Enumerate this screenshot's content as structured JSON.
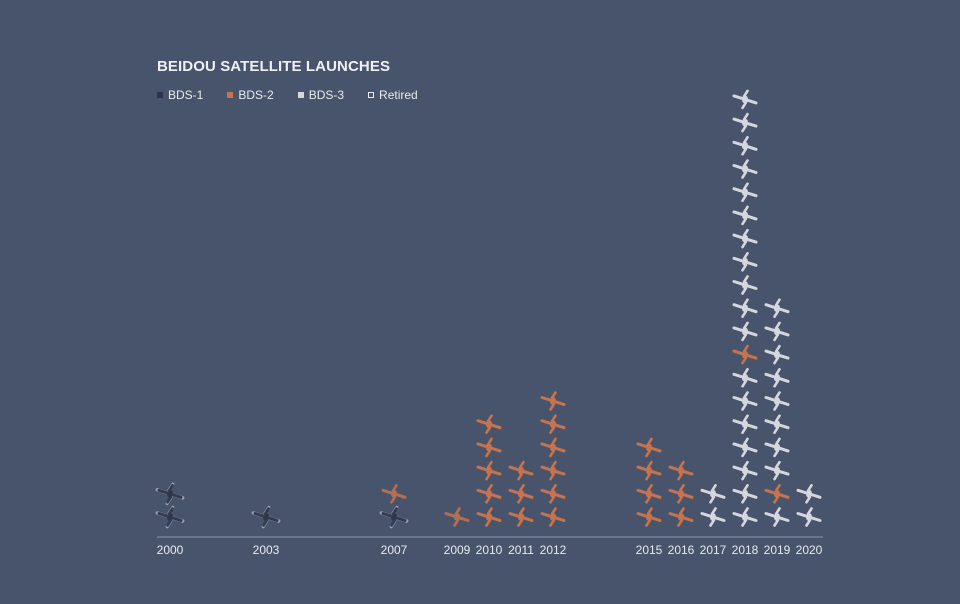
{
  "title": "BEIDOU SATELLITE LAUNCHES",
  "legend": [
    {
      "label": "BDS-1",
      "key": "bds1"
    },
    {
      "label": "BDS-2",
      "key": "bds2"
    },
    {
      "label": "BDS-3",
      "key": "bds3"
    },
    {
      "label": "Retired",
      "key": "retired"
    }
  ],
  "colors": {
    "background": "#48546b",
    "bds1": "#2e3548",
    "bds2": "#c8734d",
    "bds3": "#d4d8de",
    "retired_outline": "#e8ebf0",
    "axis": "#8a93a6"
  },
  "chart_data": {
    "type": "pictogram-stacked-bar",
    "title": "BEIDOU SATELLITE LAUNCHES",
    "unit_icon": "satellite-icon",
    "years": [
      "2000",
      "2003",
      "2007",
      "2009",
      "2010",
      "2011",
      "2012",
      "2015",
      "2016",
      "2017",
      "2018",
      "2019",
      "2020"
    ],
    "stacks": [
      {
        "year": "2000",
        "satellites": [
          "bds1-retired",
          "bds1-retired"
        ]
      },
      {
        "year": "2003",
        "satellites": [
          "bds1-retired"
        ]
      },
      {
        "year": "2007",
        "satellites": [
          "bds1-retired",
          "bds2-retired"
        ]
      },
      {
        "year": "2009",
        "satellites": [
          "bds2-retired"
        ]
      },
      {
        "year": "2010",
        "satellites": [
          "bds2",
          "bds2",
          "bds2",
          "bds2",
          "bds2"
        ]
      },
      {
        "year": "2011",
        "satellites": [
          "bds2",
          "bds2",
          "bds2"
        ]
      },
      {
        "year": "2012",
        "satellites": [
          "bds2",
          "bds2",
          "bds2",
          "bds2",
          "bds2",
          "bds2"
        ]
      },
      {
        "year": "2015",
        "satellites": [
          "bds2",
          "bds2",
          "bds2",
          "bds2"
        ]
      },
      {
        "year": "2016",
        "satellites": [
          "bds2",
          "bds2",
          "bds2"
        ]
      },
      {
        "year": "2017",
        "satellites": [
          "bds3",
          "bds3"
        ]
      },
      {
        "year": "2018",
        "satellites": [
          "bds3",
          "bds3",
          "bds3",
          "bds3",
          "bds3",
          "bds3",
          "bds3",
          "bds2",
          "bds3",
          "bds3",
          "bds3",
          "bds3",
          "bds3",
          "bds3",
          "bds3",
          "bds3",
          "bds3",
          "bds3",
          "bds3"
        ]
      },
      {
        "year": "2019",
        "satellites": [
          "bds3",
          "bds2",
          "bds3",
          "bds3",
          "bds3",
          "bds3",
          "bds3",
          "bds3",
          "bds3",
          "bds3"
        ]
      },
      {
        "year": "2020",
        "satellites": [
          "bds3",
          "bds3"
        ]
      }
    ]
  }
}
